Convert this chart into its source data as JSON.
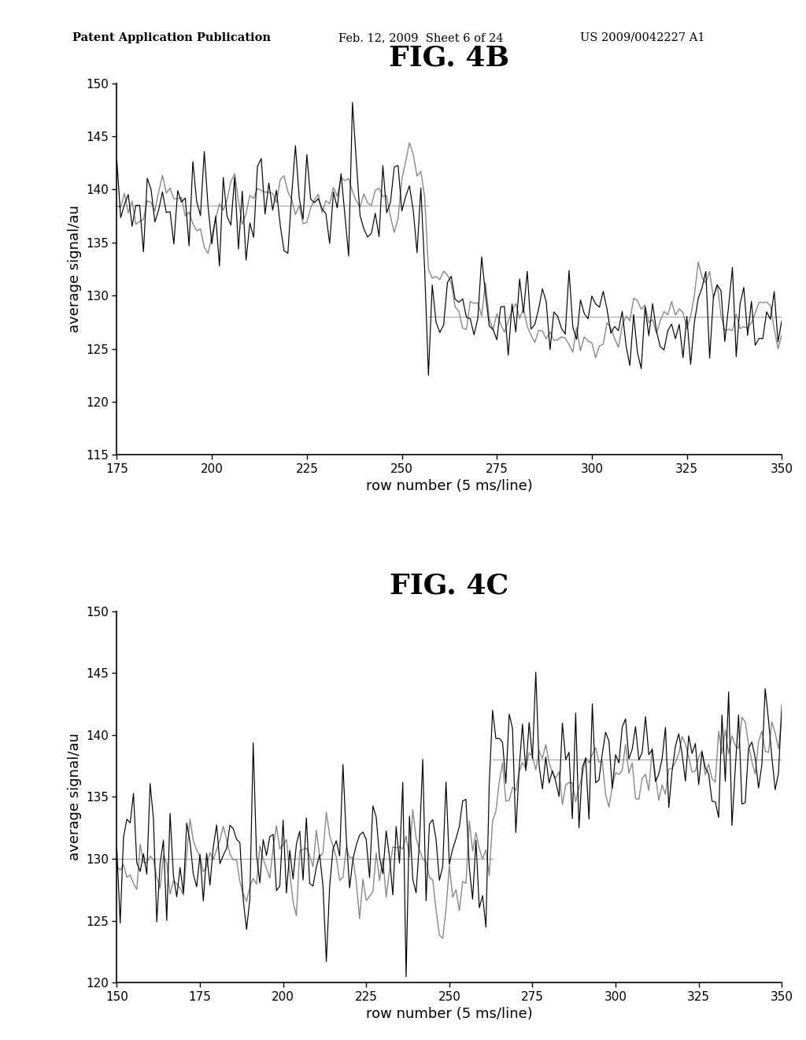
{
  "fig4b": {
    "title": "FIG. 4B",
    "xlabel": "row number (5 ms/line)",
    "ylabel": "average signal/au",
    "xlim": [
      175,
      350
    ],
    "ylim": [
      115,
      150
    ],
    "yticks": [
      115,
      120,
      125,
      130,
      135,
      140,
      145,
      150
    ],
    "xticks": [
      175,
      200,
      225,
      250,
      275,
      300,
      325,
      350
    ],
    "segment1_x_start": 175,
    "segment1_x_end": 257,
    "segment1_mean": 138.5,
    "segment2_x_start": 257,
    "segment2_x_end": 350,
    "segment2_mean": 128.0,
    "noise_std": 2.5,
    "spike_x": 237,
    "spike_val": 148.2,
    "drop_x": 257,
    "drop_val": 122.5,
    "smooth_noise_std": 1.2
  },
  "fig4c": {
    "title": "FIG. 4C",
    "xlabel": "row number (5 ms/line)",
    "ylabel": "average signal/au",
    "xlim": [
      150,
      350
    ],
    "ylim": [
      120,
      150
    ],
    "yticks": [
      120,
      125,
      130,
      135,
      140,
      145,
      150
    ],
    "xticks": [
      150,
      175,
      200,
      225,
      250,
      275,
      300,
      325,
      350
    ],
    "segment1_x_start": 150,
    "segment1_x_end": 263,
    "segment1_mean": 130.0,
    "segment2_x_start": 263,
    "segment2_x_end": 350,
    "segment2_mean": 138.0,
    "noise_std": 2.8,
    "smooth_noise_std": 1.5
  },
  "header_left": "Patent Application Publication",
  "header_mid": "Feb. 12, 2009  Sheet 6 of 24",
  "header_right": "US 2009/0042227 A1",
  "background_color": "#ffffff",
  "line_color": "#000000",
  "ref_line_color": "#aaaaaa",
  "smooth_line_color": "#888888",
  "title_fontsize": 26,
  "axis_fontsize": 13,
  "tick_fontsize": 11,
  "header_fontsize": 10.5
}
